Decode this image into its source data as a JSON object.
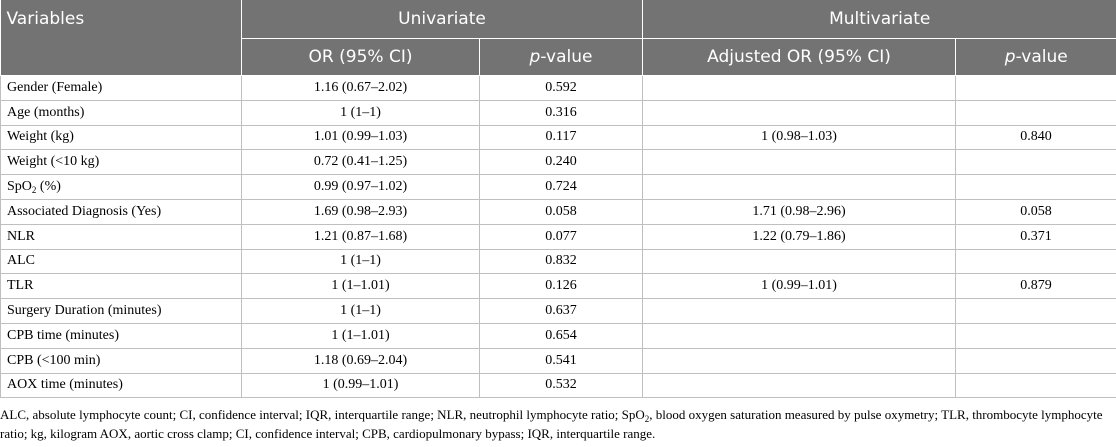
{
  "header": {
    "variables": "Variables",
    "univariate": "Univariate",
    "multivariate": "Multivariate",
    "or_ci": "OR (95% CI)",
    "pvalue_italic": "p",
    "pvalue_suffix": "-value",
    "adjusted_or_ci": "Adjusted OR (95% CI)"
  },
  "rows": [
    {
      "variable": "Gender (Female)",
      "or": "1.16 (0.67–2.02)",
      "p": "0.592",
      "aor": "",
      "ap": ""
    },
    {
      "variable": "Age (months)",
      "or": "1 (1–1)",
      "p": "0.316",
      "aor": "",
      "ap": ""
    },
    {
      "variable": "Weight (kg)",
      "or": "1.01 (0.99–1.03)",
      "p": "0.117",
      "aor": "1 (0.98–1.03)",
      "ap": "0.840"
    },
    {
      "variable": "Weight (<10 kg)",
      "or": "0.72 (0.41–1.25)",
      "p": "0.240",
      "aor": "",
      "ap": ""
    },
    {
      "variable": "SpO",
      "variable_sub": "2",
      "variable_suffix": " (%)",
      "or": "0.99 (0.97–1.02)",
      "p": "0.724",
      "aor": "",
      "ap": ""
    },
    {
      "variable": "Associated Diagnosis (Yes)",
      "or": "1.69 (0.98–2.93)",
      "p": "0.058",
      "aor": "1.71 (0.98–2.96)",
      "ap": "0.058"
    },
    {
      "variable": "NLR",
      "or": "1.21 (0.87–1.68)",
      "p": "0.077",
      "aor": "1.22 (0.79–1.86)",
      "ap": "0.371"
    },
    {
      "variable": "ALC",
      "or": "1 (1–1)",
      "p": "0.832",
      "aor": "",
      "ap": ""
    },
    {
      "variable": "TLR",
      "or": "1 (1–1.01)",
      "p": "0.126",
      "aor": "1 (0.99–1.01)",
      "ap": "0.879"
    },
    {
      "variable": "Surgery Duration (minutes)",
      "or": "1 (1–1)",
      "p": "0.637",
      "aor": "",
      "ap": ""
    },
    {
      "variable": "CPB time (minutes)",
      "or": "1 (1–1.01)",
      "p": "0.654",
      "aor": "",
      "ap": ""
    },
    {
      "variable": "CPB (<100 min)",
      "or": "1.18 (0.69–2.04)",
      "p": "0.541",
      "aor": "",
      "ap": ""
    },
    {
      "variable": "AOX time (minutes)",
      "or": "1 (0.99–1.01)",
      "p": "0.532",
      "aor": "",
      "ap": ""
    }
  ],
  "footnote": {
    "part1": "ALC, absolute lymphocyte count; CI, confidence interval; IQR, interquartile range; NLR, neutrophil lymphocyte ratio; SpO",
    "sub": "2",
    "part2": ", blood oxygen saturation measured by pulse oxymetry; TLR, thrombocyte lymphocyte ratio; kg, kilogram AOX, aortic cross clamp; CI, confidence interval; CPB, cardiopulmonary bypass; IQR, interquartile range."
  }
}
